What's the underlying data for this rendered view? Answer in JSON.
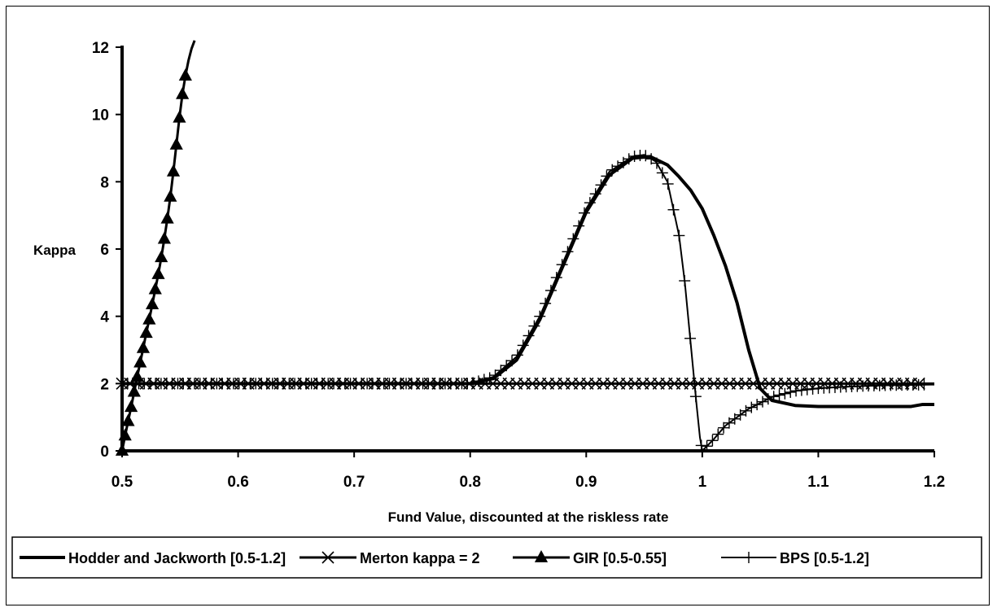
{
  "chart_data": {
    "type": "line",
    "title": "",
    "xlabel": "Fund Value, discounted at the riskless rate",
    "ylabel": "Kappa",
    "xlim": [
      0.5,
      1.2
    ],
    "ylim": [
      0,
      12
    ],
    "xticks": [
      "0.5",
      "0.6",
      "0.7",
      "0.8",
      "0.9",
      "1",
      "1.1",
      "1.2"
    ],
    "yticks": [
      "0",
      "2",
      "4",
      "6",
      "8",
      "10",
      "12"
    ],
    "grid": false,
    "legend_position": "bottom",
    "series": [
      {
        "name": "Hodder and Jackworth [0.5-1.2]",
        "marker": "none",
        "line_width": "thick",
        "x": [
          0.5,
          0.8,
          0.82,
          0.84,
          0.86,
          0.88,
          0.9,
          0.92,
          0.94,
          0.955,
          0.97,
          0.98,
          0.99,
          1.0,
          1.01,
          1.02,
          1.03,
          1.04,
          1.05,
          1.06,
          1.08,
          1.1,
          1.12,
          1.14,
          1.16,
          1.18,
          1.19,
          1.2
        ],
        "y": [
          2.0,
          2.0,
          2.15,
          2.7,
          3.9,
          5.5,
          7.1,
          8.2,
          8.7,
          8.75,
          8.5,
          8.15,
          7.75,
          7.2,
          6.4,
          5.5,
          4.4,
          3.0,
          1.85,
          1.5,
          1.35,
          1.32,
          1.32,
          1.32,
          1.32,
          1.32,
          1.38,
          1.38
        ]
      },
      {
        "name": "Merton kappa = 2",
        "marker": "x",
        "line_width": "normal",
        "x": [
          0.5,
          1.2
        ],
        "y": [
          2.0,
          2.0
        ]
      },
      {
        "name": "GIR [0.5-0.55]",
        "marker": "triangle",
        "line_width": "normal",
        "x": [
          0.5,
          0.5026,
          0.5052,
          0.5078,
          0.5104,
          0.513,
          0.5156,
          0.5182,
          0.5208,
          0.5234,
          0.526,
          0.5286,
          0.5312,
          0.5338,
          0.5364,
          0.539,
          0.5416,
          0.5442,
          0.5468,
          0.5494,
          0.552,
          0.5546,
          0.5572,
          0.5598,
          0.5625
        ],
        "y": [
          0.0,
          0.45,
          0.88,
          1.3,
          1.75,
          2.2,
          2.62,
          3.05,
          3.5,
          3.9,
          4.35,
          4.8,
          5.25,
          5.75,
          6.3,
          6.9,
          7.55,
          8.3,
          9.1,
          9.9,
          10.6,
          11.15,
          11.6,
          11.95,
          12.2
        ]
      },
      {
        "name": "BPS [0.5-1.2]",
        "marker": "plus",
        "line_width": "thin",
        "x": [
          0.5,
          0.8,
          0.82,
          0.84,
          0.86,
          0.88,
          0.9,
          0.92,
          0.94,
          0.95,
          0.96,
          0.97,
          0.98,
          0.985,
          0.99,
          0.995,
          0.998,
          1.0,
          1.01,
          1.02,
          1.04,
          1.06,
          1.08,
          1.1,
          1.12,
          1.14,
          1.16,
          1.18,
          1.2
        ],
        "y": [
          2.0,
          2.0,
          2.2,
          2.8,
          4.0,
          5.6,
          7.2,
          8.3,
          8.75,
          8.8,
          8.6,
          8.0,
          6.4,
          5.0,
          3.2,
          1.4,
          0.4,
          0.0,
          0.35,
          0.75,
          1.25,
          1.6,
          1.78,
          1.86,
          1.9,
          1.93,
          1.95,
          1.96,
          1.97
        ]
      }
    ]
  }
}
